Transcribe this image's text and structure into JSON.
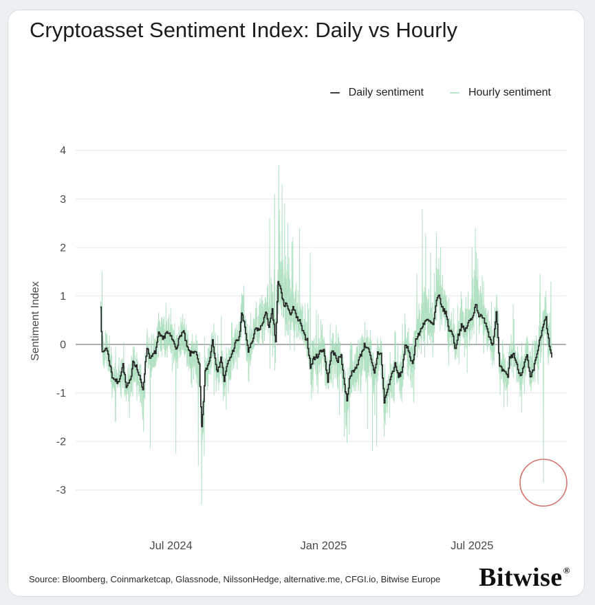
{
  "card": {
    "title": "Cryptoasset Sentiment Index: Daily vs Hourly",
    "source": "Source: Bloomberg, Coinmarketcap, Glassnode, NilssonHedge, alternative.me, CFGI.io, Bitwise Europe",
    "brand": "Bitwise",
    "brand_reg": "®"
  },
  "legend": [
    {
      "label": "Daily sentiment",
      "color": "#3a3d3a"
    },
    {
      "label": "Hourly sentiment",
      "color": "#b9e6c8"
    }
  ],
  "chart_data": {
    "type": "line",
    "title": "Cryptoasset Sentiment Index: Daily vs Hourly",
    "xlabel": "",
    "ylabel": "Sentiment Index",
    "x_start_date": "2024-04-07",
    "days_total": 544,
    "x_ticks": [
      {
        "label": "Jul 2024",
        "day": 85
      },
      {
        "label": "Jan 2025",
        "day": 269
      },
      {
        "label": "Jul 2025",
        "day": 448
      }
    ],
    "y_ticks": [
      4,
      3,
      2,
      1,
      0,
      -1,
      -2,
      -3
    ],
    "ylim": [
      -3.6,
      4.3
    ],
    "grid": true,
    "legend_position": "top-right",
    "colors": {
      "daily": "#262626",
      "hourly": "#9fdbb4",
      "grid": "#e4e6e5",
      "zero_line": "#939695",
      "axis_text": "#4a4a4a",
      "annotation": "#d5736d"
    },
    "series": [
      {
        "name": "Daily sentiment",
        "style": "step",
        "anchors_day_value": [
          [
            0,
            0.82
          ],
          [
            2,
            -0.2
          ],
          [
            7,
            -0.05
          ],
          [
            14,
            -0.66
          ],
          [
            21,
            -0.8
          ],
          [
            27,
            -0.42
          ],
          [
            31,
            -0.9
          ],
          [
            36,
            -0.75
          ],
          [
            39,
            -0.33
          ],
          [
            43,
            -0.45
          ],
          [
            51,
            -0.92
          ],
          [
            56,
            -0.05
          ],
          [
            60,
            -0.3
          ],
          [
            66,
            -0.15
          ],
          [
            70,
            0.21
          ],
          [
            75,
            0.1
          ],
          [
            79,
            0.26
          ],
          [
            85,
            0.15
          ],
          [
            91,
            -0.07
          ],
          [
            97,
            0.22
          ],
          [
            100,
            0.26
          ],
          [
            104,
            -0.05
          ],
          [
            108,
            -0.2
          ],
          [
            114,
            -0.12
          ],
          [
            119,
            -0.45
          ],
          [
            122,
            -1.74
          ],
          [
            126,
            -0.57
          ],
          [
            131,
            -0.35
          ],
          [
            135,
            0.1
          ],
          [
            141,
            -0.6
          ],
          [
            145,
            -0.25
          ],
          [
            149,
            -0.75
          ],
          [
            153,
            -0.4
          ],
          [
            158,
            -0.2
          ],
          [
            163,
            0.05
          ],
          [
            167,
            0.12
          ],
          [
            170,
            0.65
          ],
          [
            174,
            0.35
          ],
          [
            178,
            -0.14
          ],
          [
            182,
            0.0
          ],
          [
            187,
            0.33
          ],
          [
            192,
            0.3
          ],
          [
            196,
            0.5
          ],
          [
            200,
            0.66
          ],
          [
            203,
            0.33
          ],
          [
            207,
            0.69
          ],
          [
            211,
            0.05
          ],
          [
            214,
            1.27
          ],
          [
            217,
            1.14
          ],
          [
            221,
            0.8
          ],
          [
            224,
            0.85
          ],
          [
            228,
            0.6
          ],
          [
            232,
            0.78
          ],
          [
            236,
            0.55
          ],
          [
            240,
            0.47
          ],
          [
            245,
            0.19
          ],
          [
            249,
            0.1
          ],
          [
            253,
            -0.47
          ],
          [
            257,
            -0.28
          ],
          [
            261,
            -0.24
          ],
          [
            265,
            -0.14
          ],
          [
            269,
            -0.1
          ],
          [
            274,
            -0.76
          ],
          [
            278,
            -0.14
          ],
          [
            282,
            -0.21
          ],
          [
            286,
            -0.33
          ],
          [
            290,
            -0.21
          ],
          [
            294,
            -0.85
          ],
          [
            297,
            -1.13
          ],
          [
            301,
            -0.61
          ],
          [
            305,
            -0.57
          ],
          [
            309,
            -0.42
          ],
          [
            313,
            -0.24
          ],
          [
            318,
            -0.02
          ],
          [
            322,
            -0.05
          ],
          [
            326,
            -0.33
          ],
          [
            330,
            -0.61
          ],
          [
            334,
            -0.17
          ],
          [
            338,
            -0.19
          ],
          [
            342,
            -1.18
          ],
          [
            347,
            -0.85
          ],
          [
            351,
            -0.61
          ],
          [
            355,
            -0.42
          ],
          [
            359,
            -0.66
          ],
          [
            363,
            -0.57
          ],
          [
            367,
            -0.05
          ],
          [
            371,
            -0.1
          ],
          [
            376,
            -0.42
          ],
          [
            380,
            0.1
          ],
          [
            384,
            0.21
          ],
          [
            388,
            0.4
          ],
          [
            392,
            0.5
          ],
          [
            396,
            0.47
          ],
          [
            401,
            0.4
          ],
          [
            405,
            0.89
          ],
          [
            408,
            1.0
          ],
          [
            412,
            0.73
          ],
          [
            416,
            0.66
          ],
          [
            420,
            0.31
          ],
          [
            425,
            0.21
          ],
          [
            427,
            -0.12
          ],
          [
            431,
            0.19
          ],
          [
            435,
            0.38
          ],
          [
            439,
            0.28
          ],
          [
            444,
            0.47
          ],
          [
            448,
            0.54
          ],
          [
            452,
            0.85
          ],
          [
            456,
            0.61
          ],
          [
            460,
            0.54
          ],
          [
            464,
            0.47
          ],
          [
            468,
            0.19
          ],
          [
            473,
            0.0
          ],
          [
            477,
            0.68
          ],
          [
            481,
            -0.47
          ],
          [
            485,
            -0.55
          ],
          [
            491,
            -0.66
          ],
          [
            493,
            -0.28
          ],
          [
            498,
            -0.19
          ],
          [
            502,
            -0.45
          ],
          [
            506,
            -0.64
          ],
          [
            510,
            -0.43
          ],
          [
            514,
            -0.24
          ],
          [
            518,
            -0.71
          ],
          [
            522,
            -0.52
          ],
          [
            527,
            -0.1
          ],
          [
            531,
            0.19
          ],
          [
            535,
            0.47
          ],
          [
            537,
            0.54
          ],
          [
            539,
            0.19
          ],
          [
            544,
            -0.3
          ]
        ]
      },
      {
        "name": "Hourly sentiment",
        "style": "noisy-band-around-daily",
        "samples_per_day": 7,
        "band_day_amp_skew": [
          [
            0,
            0.65,
            0
          ],
          [
            30,
            0.7,
            -0.1
          ],
          [
            60,
            0.75,
            -0.15
          ],
          [
            90,
            0.7,
            -0.15
          ],
          [
            122,
            0.85,
            -0.35
          ],
          [
            150,
            0.7,
            -0.1
          ],
          [
            180,
            0.75,
            0.1
          ],
          [
            200,
            0.95,
            0.35
          ],
          [
            215,
            1.3,
            0.5
          ],
          [
            230,
            1.05,
            0.4
          ],
          [
            245,
            0.9,
            0.25
          ],
          [
            269,
            0.8,
            0
          ],
          [
            295,
            0.9,
            -0.25
          ],
          [
            330,
            0.85,
            -0.3
          ],
          [
            345,
            0.8,
            -0.2
          ],
          [
            365,
            0.75,
            0
          ],
          [
            388,
            1.0,
            0.35
          ],
          [
            400,
            0.85,
            0.15
          ],
          [
            420,
            0.8,
            0.1
          ],
          [
            452,
            0.9,
            0.3
          ],
          [
            470,
            0.8,
            0.1
          ],
          [
            500,
            0.75,
            0
          ],
          [
            525,
            0.85,
            0.1
          ],
          [
            544,
            0.9,
            0.2
          ]
        ],
        "extreme_spikes_day_value": [
          [
            2,
            1.5
          ],
          [
            18,
            -1.6
          ],
          [
            60,
            -2.15
          ],
          [
            91,
            -2.25
          ],
          [
            118,
            -2.5
          ],
          [
            122,
            -3.3
          ],
          [
            125,
            -2.3
          ],
          [
            204,
            2.6
          ],
          [
            210,
            3.1
          ],
          [
            215,
            3.7
          ],
          [
            219,
            3.3
          ],
          [
            222,
            2.9
          ],
          [
            226,
            2.5
          ],
          [
            232,
            2.2
          ],
          [
            240,
            2.4
          ],
          [
            253,
            1.9
          ],
          [
            294,
            -1.9
          ],
          [
            300,
            -1.85
          ],
          [
            322,
            -1.75
          ],
          [
            328,
            -2.2
          ],
          [
            333,
            -2.1
          ],
          [
            342,
            -1.9
          ],
          [
            388,
            2.8
          ],
          [
            392,
            2.3
          ],
          [
            398,
            1.9
          ],
          [
            405,
            2.3
          ],
          [
            410,
            2.0
          ],
          [
            448,
            2.0
          ],
          [
            452,
            2.4
          ],
          [
            530,
            1.45
          ],
          [
            534,
            -2.85
          ],
          [
            543,
            1.3
          ]
        ]
      }
    ],
    "annotation": {
      "type": "circle",
      "day": 534,
      "value": -2.85,
      "radius_px": 34,
      "note": "circled hourly downward spike near end of series"
    }
  }
}
